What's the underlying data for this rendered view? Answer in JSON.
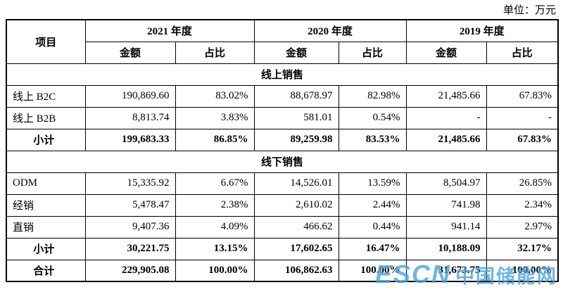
{
  "unit_label": "单位：万元",
  "table": {
    "item_header": "项目",
    "years": [
      "2021 年度",
      "2020 年度",
      "2019 年度"
    ],
    "sub_headers": [
      "金额",
      "占比"
    ],
    "rows": [
      {
        "type": "section",
        "label": "线上销售"
      },
      {
        "type": "data",
        "label": "线上 B2C",
        "bold": false,
        "center": false,
        "values": [
          "190,869.60",
          "83.02%",
          "88,678.97",
          "82.98%",
          "21,485.66",
          "67.83%"
        ]
      },
      {
        "type": "data",
        "label": "线上 B2B",
        "bold": false,
        "center": false,
        "values": [
          "8,813.74",
          "3.83%",
          "581.01",
          "0.54%",
          "-",
          "-"
        ]
      },
      {
        "type": "data",
        "label": "小计",
        "bold": true,
        "center": true,
        "values": [
          "199,683.33",
          "86.85%",
          "89,259.98",
          "83.53%",
          "21,485.66",
          "67.83%"
        ]
      },
      {
        "type": "section",
        "label": "线下销售"
      },
      {
        "type": "data",
        "label": "ODM",
        "bold": false,
        "center": false,
        "values": [
          "15,335.92",
          "6.67%",
          "14,526.01",
          "13.59%",
          "8,504.97",
          "26.85%"
        ]
      },
      {
        "type": "data",
        "label": "经销",
        "bold": false,
        "center": false,
        "values": [
          "5,478.47",
          "2.38%",
          "2,610.02",
          "2.44%",
          "741.98",
          "2.34%"
        ]
      },
      {
        "type": "data",
        "label": "直销",
        "bold": false,
        "center": false,
        "values": [
          "9,407.36",
          "4.09%",
          "466.62",
          "0.44%",
          "941.14",
          "2.97%"
        ]
      },
      {
        "type": "data",
        "label": "小计",
        "bold": true,
        "center": true,
        "values": [
          "30,221.75",
          "13.15%",
          "17,602.65",
          "16.47%",
          "10,188.09",
          "32.17%"
        ]
      },
      {
        "type": "data",
        "label": "合计",
        "bold": true,
        "center": true,
        "values": [
          "229,905.08",
          "100.00%",
          "106,862.63",
          "100.00%",
          "31,673.75",
          "100.00%"
        ]
      }
    ]
  },
  "watermark": {
    "logo": "ESCN",
    "text": "中国储能网"
  }
}
